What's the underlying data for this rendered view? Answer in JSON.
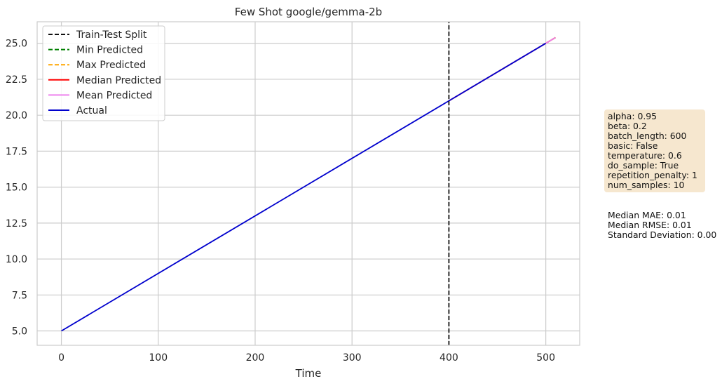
{
  "chart_data": {
    "type": "line",
    "title": "Few Shot google/gemma-2b",
    "xlabel": "Time",
    "ylabel": "",
    "xlim": [
      -25,
      535
    ],
    "ylim": [
      4.0,
      26.5
    ],
    "xticks": [
      0,
      100,
      200,
      300,
      400,
      500
    ],
    "xtick_labels": [
      "0",
      "100",
      "200",
      "300",
      "400",
      "500"
    ],
    "yticks": [
      5.0,
      7.5,
      10.0,
      12.5,
      15.0,
      17.5,
      20.0,
      22.5,
      25.0
    ],
    "ytick_labels": [
      "5.0",
      "7.5",
      "10.0",
      "12.5",
      "15.0",
      "17.5",
      "20.0",
      "22.5",
      "25.0"
    ],
    "grid": true,
    "legend_position": "top-left",
    "split_x": 400,
    "series": [
      {
        "name": "Train-Test Split",
        "color": "#111111",
        "style": "dashed",
        "x": [
          400,
          400
        ],
        "y": [
          4.0,
          26.5
        ]
      },
      {
        "name": "Min Predicted",
        "color": "#008000",
        "style": "dashed",
        "x": [
          400,
          510
        ],
        "y": [
          21.0,
          25.4
        ]
      },
      {
        "name": "Max Predicted",
        "color": "#ffa500",
        "style": "dashed",
        "x": [
          400,
          510
        ],
        "y": [
          21.0,
          25.4
        ]
      },
      {
        "name": "Median Predicted",
        "color": "#ff0000",
        "style": "solid",
        "x": [
          400,
          510
        ],
        "y": [
          21.0,
          25.4
        ]
      },
      {
        "name": "Mean Predicted",
        "color": "#ee82ee",
        "style": "solid",
        "x": [
          400,
          510
        ],
        "y": [
          21.0,
          25.4
        ]
      },
      {
        "name": "Actual",
        "color": "#0000cd",
        "style": "solid",
        "x": [
          0,
          500
        ],
        "y": [
          5.0,
          25.0
        ]
      }
    ]
  },
  "params": [
    "alpha: 0.95",
    "beta: 0.2",
    "batch_length: 600",
    "basic: False",
    "temperature: 0.6",
    "do_sample: True",
    "repetition_penalty: 1",
    "num_samples: 10"
  ],
  "metrics": [
    "Median MAE: 0.01",
    "Median RMSE: 0.01",
    "Standard Deviation: 0.00"
  ],
  "colors": {
    "grid": "#cccccc",
    "params_box_bg": "#f6e7cf"
  }
}
